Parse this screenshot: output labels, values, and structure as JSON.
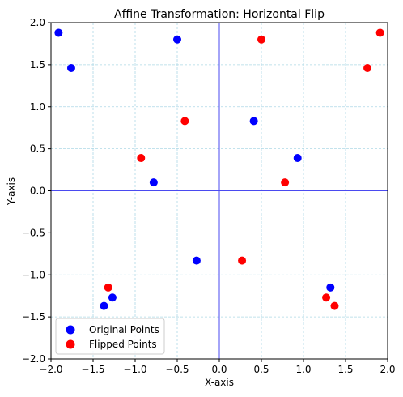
{
  "chart_data": {
    "type": "scatter",
    "title": "Affine Transformation: Horizontal Flip",
    "xlabel": "X-axis",
    "ylabel": "Y-axis",
    "xlim": [
      -2.0,
      2.0
    ],
    "ylim": [
      -2.0,
      2.0
    ],
    "xticks": [
      -2.0,
      -1.5,
      -1.0,
      -0.5,
      0.0,
      0.5,
      1.0,
      1.5,
      2.0
    ],
    "yticks": [
      -2.0,
      -1.5,
      -1.0,
      -0.5,
      0.0,
      0.5,
      1.0,
      1.5,
      2.0
    ],
    "xtick_labels": [
      "−2.0",
      "−1.5",
      "−1.0",
      "−0.5",
      "0.0",
      "0.5",
      "1.0",
      "1.5",
      "2.0"
    ],
    "ytick_labels": [
      "−2.0",
      "−1.5",
      "−1.0",
      "−0.5",
      "0.0",
      "0.5",
      "1.0",
      "1.5",
      "2.0"
    ],
    "grid": true,
    "legend_position": "lower-left",
    "series": [
      {
        "name": "Original Points",
        "color": "#0000ff",
        "points": [
          {
            "x": -1.91,
            "y": 1.88
          },
          {
            "x": -1.76,
            "y": 1.46
          },
          {
            "x": -0.5,
            "y": 1.8
          },
          {
            "x": 0.41,
            "y": 0.83
          },
          {
            "x": 0.93,
            "y": 0.39
          },
          {
            "x": -0.78,
            "y": 0.1
          },
          {
            "x": -0.27,
            "y": -0.83
          },
          {
            "x": 1.32,
            "y": -1.15
          },
          {
            "x": -1.27,
            "y": -1.27
          },
          {
            "x": -1.37,
            "y": -1.37
          }
        ]
      },
      {
        "name": "Flipped Points",
        "color": "#ff0000",
        "points": [
          {
            "x": 1.91,
            "y": 1.88
          },
          {
            "x": 1.76,
            "y": 1.46
          },
          {
            "x": 0.5,
            "y": 1.8
          },
          {
            "x": -0.41,
            "y": 0.83
          },
          {
            "x": -0.93,
            "y": 0.39
          },
          {
            "x": 0.78,
            "y": 0.1
          },
          {
            "x": 0.27,
            "y": -0.83
          },
          {
            "x": -1.32,
            "y": -1.15
          },
          {
            "x": 1.27,
            "y": -1.27
          },
          {
            "x": 1.37,
            "y": -1.37
          }
        ]
      }
    ]
  }
}
